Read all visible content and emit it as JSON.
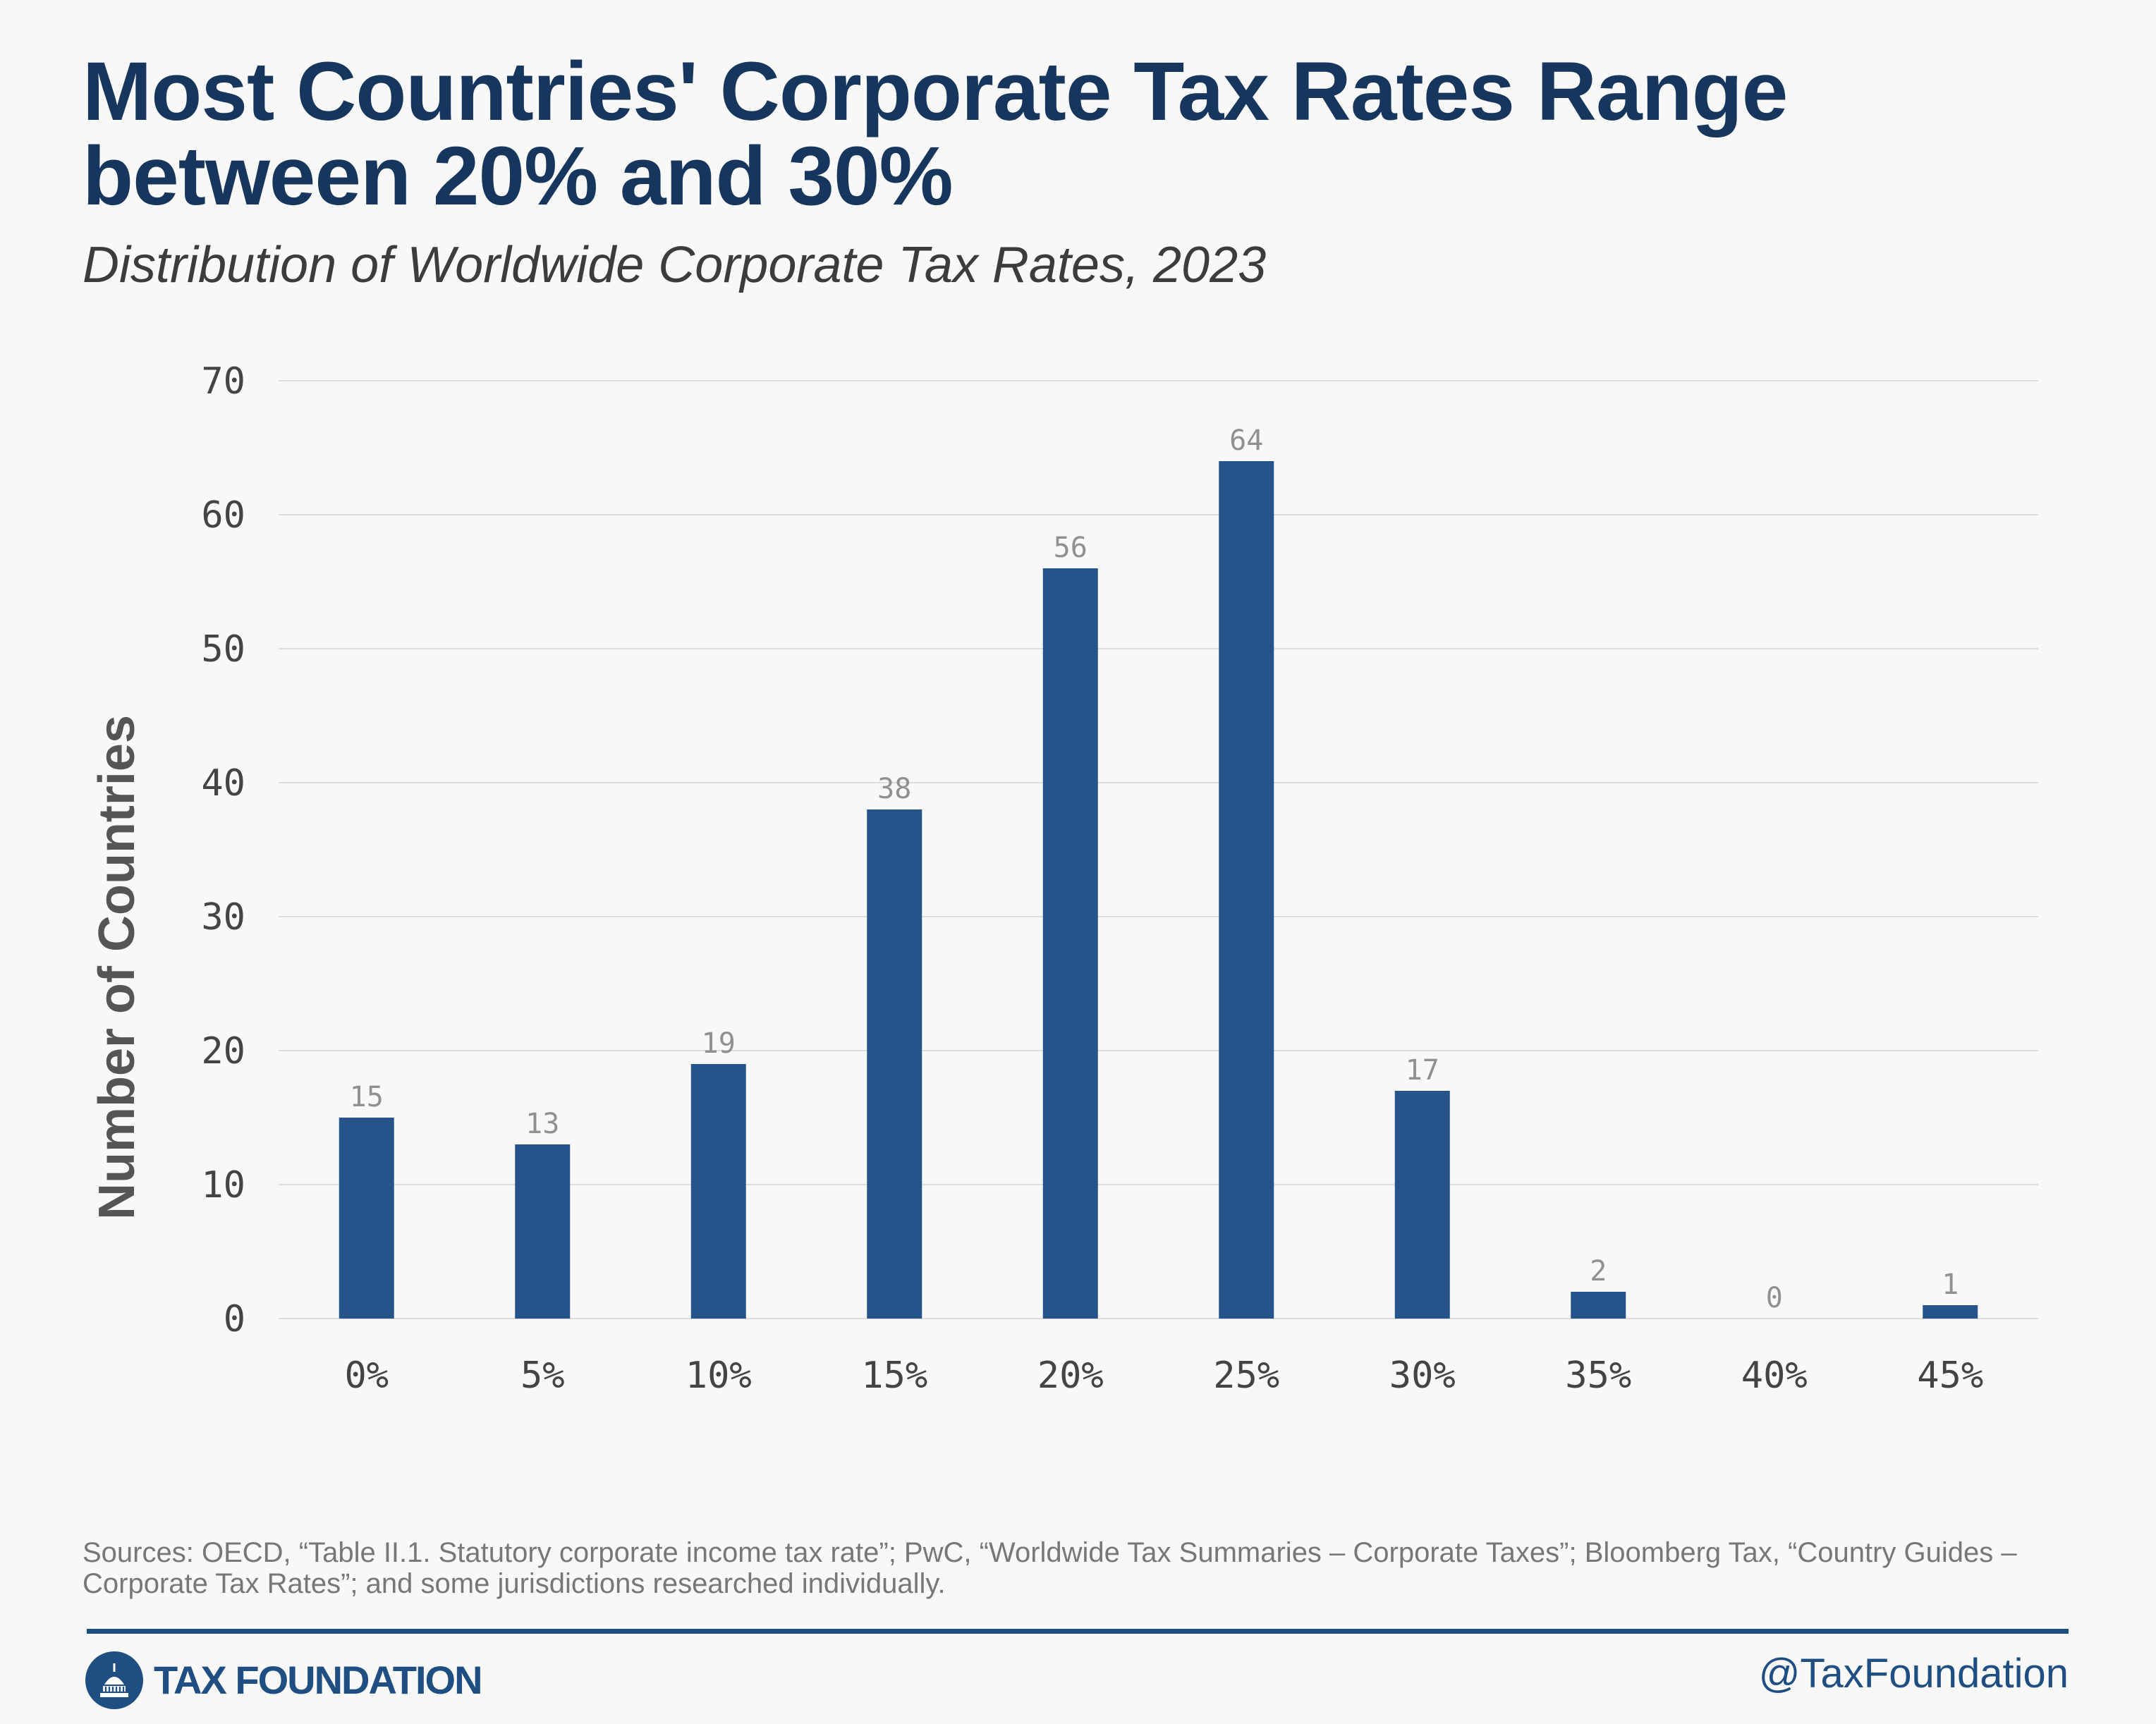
{
  "header": {
    "title": "Most Countries' Corporate Tax Rates Range between 20% and 30%",
    "subtitle": "Distribution of Worldwide Corporate Tax Rates, 2023"
  },
  "chart_data": {
    "type": "bar",
    "categories": [
      "0%",
      "5%",
      "10%",
      "15%",
      "20%",
      "25%",
      "30%",
      "35%",
      "40%",
      "45%"
    ],
    "values": [
      15,
      13,
      19,
      38,
      56,
      64,
      17,
      2,
      0,
      1
    ],
    "ylabel": "Number of Countries",
    "xlabel": "",
    "ylim": [
      0,
      70
    ],
    "yticks": [
      0,
      10,
      20,
      30,
      40,
      50,
      60,
      70
    ],
    "grid": true,
    "data_labels": true,
    "bar_color": "#24548a",
    "grid_color": "#dddddd",
    "label_color": "#909090",
    "tick_color": "#444444"
  },
  "footer": {
    "sources": "Sources: OECD, “Table II.1. Statutory corporate income tax rate”; PwC, “Worldwide Tax Summaries – Corporate Taxes”; Bloomberg Tax, “Country Guides – Corporate Tax Rates”; and some jurisdictions researched individually.",
    "logo_text": "TAX FOUNDATION",
    "handle": "@TaxFoundation"
  },
  "colors": {
    "title": "#17365d",
    "brand": "#1f4e82",
    "rule": "#1d4e7f"
  },
  "icons": {
    "logo": "capitol-dome-icon"
  }
}
